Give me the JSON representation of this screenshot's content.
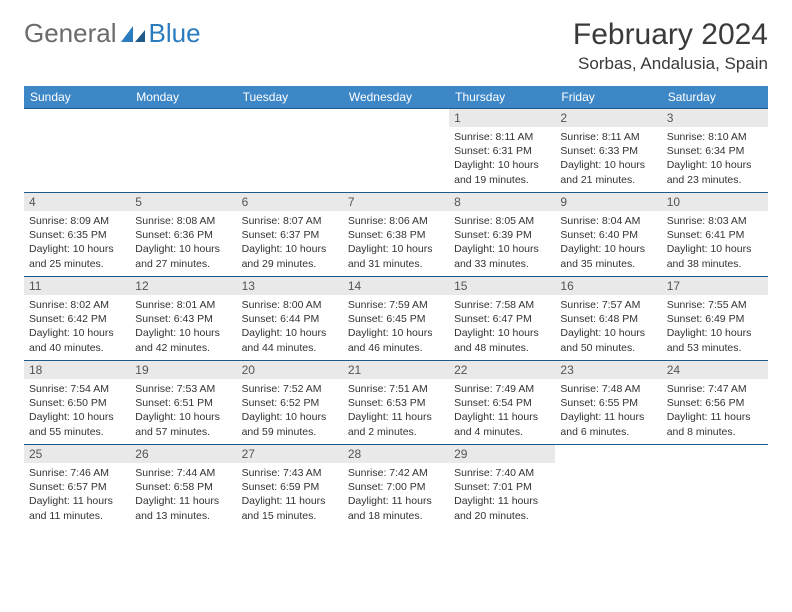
{
  "logo": {
    "general": "General",
    "blue": "Blue"
  },
  "title": "February 2024",
  "location": "Sorbas, Andalusia, Spain",
  "colors": {
    "header_bg": "#3d87c7",
    "header_text": "#ffffff",
    "daynum_bg": "#e9e9e9",
    "row_border": "#1f5a8a",
    "logo_gray": "#6b6b6b",
    "logo_blue": "#2b7bbf"
  },
  "weekdays": [
    "Sunday",
    "Monday",
    "Tuesday",
    "Wednesday",
    "Thursday",
    "Friday",
    "Saturday"
  ],
  "weeks": [
    [
      null,
      null,
      null,
      null,
      {
        "n": "1",
        "sunrise": "8:11 AM",
        "sunset": "6:31 PM",
        "daylight": "10 hours and 19 minutes."
      },
      {
        "n": "2",
        "sunrise": "8:11 AM",
        "sunset": "6:33 PM",
        "daylight": "10 hours and 21 minutes."
      },
      {
        "n": "3",
        "sunrise": "8:10 AM",
        "sunset": "6:34 PM",
        "daylight": "10 hours and 23 minutes."
      }
    ],
    [
      {
        "n": "4",
        "sunrise": "8:09 AM",
        "sunset": "6:35 PM",
        "daylight": "10 hours and 25 minutes."
      },
      {
        "n": "5",
        "sunrise": "8:08 AM",
        "sunset": "6:36 PM",
        "daylight": "10 hours and 27 minutes."
      },
      {
        "n": "6",
        "sunrise": "8:07 AM",
        "sunset": "6:37 PM",
        "daylight": "10 hours and 29 minutes."
      },
      {
        "n": "7",
        "sunrise": "8:06 AM",
        "sunset": "6:38 PM",
        "daylight": "10 hours and 31 minutes."
      },
      {
        "n": "8",
        "sunrise": "8:05 AM",
        "sunset": "6:39 PM",
        "daylight": "10 hours and 33 minutes."
      },
      {
        "n": "9",
        "sunrise": "8:04 AM",
        "sunset": "6:40 PM",
        "daylight": "10 hours and 35 minutes."
      },
      {
        "n": "10",
        "sunrise": "8:03 AM",
        "sunset": "6:41 PM",
        "daylight": "10 hours and 38 minutes."
      }
    ],
    [
      {
        "n": "11",
        "sunrise": "8:02 AM",
        "sunset": "6:42 PM",
        "daylight": "10 hours and 40 minutes."
      },
      {
        "n": "12",
        "sunrise": "8:01 AM",
        "sunset": "6:43 PM",
        "daylight": "10 hours and 42 minutes."
      },
      {
        "n": "13",
        "sunrise": "8:00 AM",
        "sunset": "6:44 PM",
        "daylight": "10 hours and 44 minutes."
      },
      {
        "n": "14",
        "sunrise": "7:59 AM",
        "sunset": "6:45 PM",
        "daylight": "10 hours and 46 minutes."
      },
      {
        "n": "15",
        "sunrise": "7:58 AM",
        "sunset": "6:47 PM",
        "daylight": "10 hours and 48 minutes."
      },
      {
        "n": "16",
        "sunrise": "7:57 AM",
        "sunset": "6:48 PM",
        "daylight": "10 hours and 50 minutes."
      },
      {
        "n": "17",
        "sunrise": "7:55 AM",
        "sunset": "6:49 PM",
        "daylight": "10 hours and 53 minutes."
      }
    ],
    [
      {
        "n": "18",
        "sunrise": "7:54 AM",
        "sunset": "6:50 PM",
        "daylight": "10 hours and 55 minutes."
      },
      {
        "n": "19",
        "sunrise": "7:53 AM",
        "sunset": "6:51 PM",
        "daylight": "10 hours and 57 minutes."
      },
      {
        "n": "20",
        "sunrise": "7:52 AM",
        "sunset": "6:52 PM",
        "daylight": "10 hours and 59 minutes."
      },
      {
        "n": "21",
        "sunrise": "7:51 AM",
        "sunset": "6:53 PM",
        "daylight": "11 hours and 2 minutes."
      },
      {
        "n": "22",
        "sunrise": "7:49 AM",
        "sunset": "6:54 PM",
        "daylight": "11 hours and 4 minutes."
      },
      {
        "n": "23",
        "sunrise": "7:48 AM",
        "sunset": "6:55 PM",
        "daylight": "11 hours and 6 minutes."
      },
      {
        "n": "24",
        "sunrise": "7:47 AM",
        "sunset": "6:56 PM",
        "daylight": "11 hours and 8 minutes."
      }
    ],
    [
      {
        "n": "25",
        "sunrise": "7:46 AM",
        "sunset": "6:57 PM",
        "daylight": "11 hours and 11 minutes."
      },
      {
        "n": "26",
        "sunrise": "7:44 AM",
        "sunset": "6:58 PM",
        "daylight": "11 hours and 13 minutes."
      },
      {
        "n": "27",
        "sunrise": "7:43 AM",
        "sunset": "6:59 PM",
        "daylight": "11 hours and 15 minutes."
      },
      {
        "n": "28",
        "sunrise": "7:42 AM",
        "sunset": "7:00 PM",
        "daylight": "11 hours and 18 minutes."
      },
      {
        "n": "29",
        "sunrise": "7:40 AM",
        "sunset": "7:01 PM",
        "daylight": "11 hours and 20 minutes."
      },
      null,
      null
    ]
  ],
  "labels": {
    "sunrise": "Sunrise:",
    "sunset": "Sunset:",
    "daylight": "Daylight:"
  }
}
